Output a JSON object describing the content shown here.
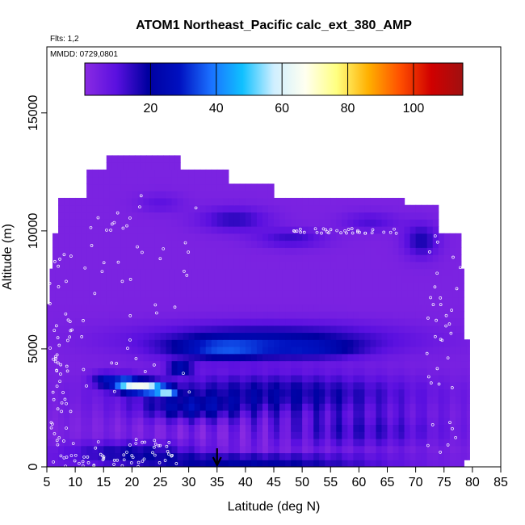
{
  "chart_data": {
    "type": "heatmap",
    "title": "ATOM1 Northeast_Pacific calc_ext_380_AMP",
    "flights_label": "Flts: 1,2",
    "date_label": "MMDD: 0729,0801",
    "xlabel": "Latitude (deg N)",
    "ylabel": "Altitude (m)",
    "xlim": [
      5,
      85
    ],
    "ylim": [
      0,
      17800
    ],
    "xticks": [
      "5",
      "10",
      "15",
      "20",
      "25",
      "30",
      "35",
      "40",
      "45",
      "50",
      "55",
      "60",
      "65",
      "70",
      "75",
      "80",
      "85"
    ],
    "yticks": [
      "0",
      "5000",
      "10000",
      "15000"
    ],
    "colorbar": {
      "range": [
        0,
        115
      ],
      "ticks": [
        "20",
        "40",
        "60",
        "80",
        "100"
      ],
      "colors": [
        "#8a2be2",
        "#5a10e0",
        "#0000a0",
        "#0010c0",
        "#1a70ff",
        "#10c0ff",
        "#cfefff",
        "#fffff0",
        "#ffff80",
        "#ffb000",
        "#ff5000",
        "#d00000",
        "#a01010"
      ]
    },
    "marker_latitude": 35,
    "grid": false,
    "legend": "none"
  }
}
